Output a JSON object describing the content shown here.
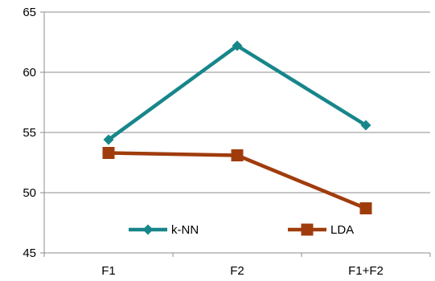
{
  "chart_data": {
    "type": "line",
    "categories": [
      "F1",
      "F2",
      "F1+F2"
    ],
    "series": [
      {
        "name": "k-NN",
        "values": [
          54.4,
          62.2,
          55.6
        ],
        "color": "#17868a",
        "marker": "diamond"
      },
      {
        "name": "LDA",
        "values": [
          53.3,
          53.1,
          48.7
        ],
        "color": "#a03c0c",
        "marker": "square"
      }
    ],
    "ylim": [
      45,
      65
    ],
    "yticks": [
      45,
      50,
      55,
      60,
      65
    ],
    "grid": true,
    "legend_position": "bottom-inside"
  }
}
